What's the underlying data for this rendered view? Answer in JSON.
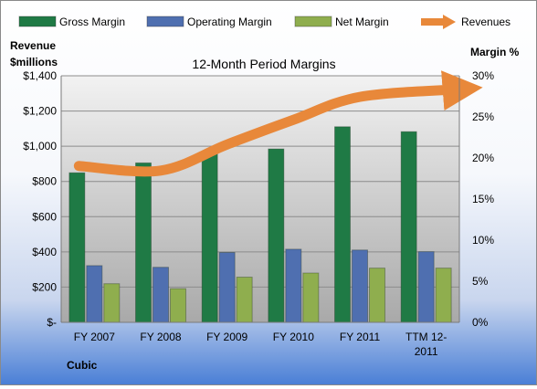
{
  "chart_data": {
    "type": "bar",
    "title": "12-Month Period Margins",
    "company": "Cubic",
    "categories": [
      "FY 2007",
      "FY 2008",
      "FY 2009",
      "FY 2010",
      "FY 2011",
      "TTM 12-2011"
    ],
    "left_axis": {
      "label_line1": "Revenue",
      "label_line2": "$millions",
      "ylim": [
        0,
        1400
      ],
      "ticks": [
        0,
        200,
        400,
        600,
        800,
        1000,
        1200,
        1400
      ],
      "tick_labels": [
        "$-",
        "$200",
        "$400",
        "$600",
        "$800",
        "$1,000",
        "$1,200",
        "$1,400"
      ]
    },
    "right_axis": {
      "label": "Margin %",
      "ylim": [
        0,
        30
      ],
      "ticks": [
        0,
        5,
        10,
        15,
        20,
        25,
        30
      ],
      "tick_labels": [
        "0%",
        "5%",
        "10%",
        "15%",
        "20%",
        "25%",
        "30%"
      ]
    },
    "series": [
      {
        "name": "Gross Margin",
        "type": "bar",
        "axis": "right",
        "color": "#1f7a45",
        "values": [
          18.2,
          19.4,
          20.8,
          21.1,
          23.8,
          23.2
        ]
      },
      {
        "name": "Operating Margin",
        "type": "bar",
        "axis": "right",
        "color": "#4f6fb0",
        "values": [
          6.9,
          6.7,
          8.5,
          8.9,
          8.8,
          8.6
        ]
      },
      {
        "name": "Net Margin",
        "type": "bar",
        "axis": "right",
        "color": "#8fae4e",
        "values": [
          4.7,
          4.1,
          5.5,
          6.0,
          6.6,
          6.6
        ]
      },
      {
        "name": "Revenues",
        "type": "line",
        "axis": "left",
        "color": "#e8883a",
        "values": [
          888,
          862,
          1010,
          1150,
          1280,
          1325
        ]
      }
    ],
    "legend_position": "top",
    "grid": true
  }
}
